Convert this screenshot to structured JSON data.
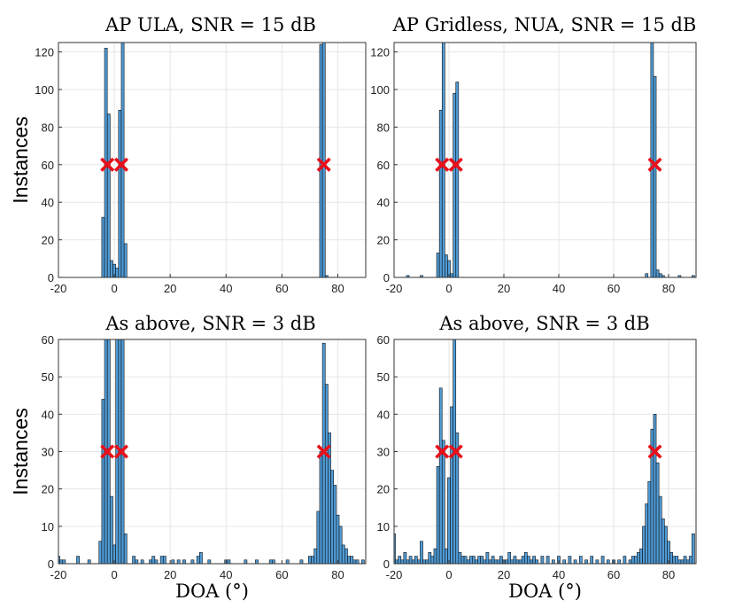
{
  "colors": {
    "bar": "#4f9bd6",
    "bar_edge": "#111111",
    "marker": "#e8101a",
    "grid": "#e6e6e6"
  },
  "chart_data": [
    {
      "type": "bar",
      "title": "AP ULA, SNR = 15 dB",
      "ylabel": "Instances",
      "xlabel": "",
      "xlim": [
        -20,
        90
      ],
      "ylim": [
        0,
        125
      ],
      "xticks": [
        "-20",
        "0",
        "20",
        "40",
        "60",
        "80"
      ],
      "yticks": [
        "0",
        "20",
        "40",
        "60",
        "80",
        "100",
        "120"
      ],
      "bin_width": 1,
      "bins": [
        [
          -4,
          32
        ],
        [
          -3,
          122
        ],
        [
          -2,
          87
        ],
        [
          -1,
          9
        ],
        [
          0,
          7
        ],
        [
          1,
          5
        ],
        [
          2,
          89
        ],
        [
          3,
          125
        ],
        [
          4,
          18
        ],
        [
          74,
          124
        ],
        [
          75,
          125
        ],
        [
          76,
          1
        ]
      ],
      "markers": {
        "x": [
          -2.5,
          2.5,
          75
        ],
        "y": 60
      }
    },
    {
      "type": "bar",
      "title": "AP Gridless, NUA, SNR = 15 dB",
      "ylabel": "",
      "xlabel": "",
      "xlim": [
        -20,
        90
      ],
      "ylim": [
        0,
        125
      ],
      "xticks": [
        "-20",
        "0",
        "20",
        "40",
        "60",
        "80"
      ],
      "yticks": [
        "0",
        "20",
        "40",
        "60",
        "80",
        "100",
        "120"
      ],
      "bin_width": 1,
      "bins": [
        [
          -15,
          1
        ],
        [
          -10,
          1
        ],
        [
          -4,
          13
        ],
        [
          -3,
          89
        ],
        [
          -2,
          125
        ],
        [
          -1,
          12
        ],
        [
          0,
          9
        ],
        [
          1,
          2
        ],
        [
          2,
          98
        ],
        [
          3,
          104
        ],
        [
          72,
          2
        ],
        [
          74,
          125
        ],
        [
          75,
          107
        ],
        [
          76,
          4
        ],
        [
          77,
          2
        ],
        [
          78,
          1
        ],
        [
          84,
          1
        ],
        [
          89,
          1
        ]
      ],
      "markers": {
        "x": [
          -2.5,
          2.5,
          75
        ],
        "y": 60
      }
    },
    {
      "type": "bar",
      "title": "As above, SNR = 3 dB",
      "ylabel": "Instances",
      "xlabel": "DOA (°)",
      "xlim": [
        -20,
        90
      ],
      "ylim": [
        0,
        60
      ],
      "xticks": [
        "-20",
        "0",
        "20",
        "40",
        "60",
        "80"
      ],
      "yticks": [
        "0",
        "10",
        "20",
        "30",
        "40",
        "50",
        "60"
      ],
      "bin_width": 1,
      "bins": [
        [
          -20,
          2
        ],
        [
          -19,
          1
        ],
        [
          -18,
          1
        ],
        [
          -13,
          2
        ],
        [
          -9,
          1
        ],
        [
          -5,
          6
        ],
        [
          -4,
          44
        ],
        [
          -3,
          60
        ],
        [
          -2,
          60
        ],
        [
          -1,
          18
        ],
        [
          0,
          5
        ],
        [
          1,
          60
        ],
        [
          2,
          60
        ],
        [
          3,
          60
        ],
        [
          4,
          8
        ],
        [
          7,
          2
        ],
        [
          8,
          1
        ],
        [
          10,
          1
        ],
        [
          13,
          1
        ],
        [
          14,
          2
        ],
        [
          15,
          1
        ],
        [
          17,
          2
        ],
        [
          18,
          2
        ],
        [
          21,
          1
        ],
        [
          23,
          1
        ],
        [
          25,
          1
        ],
        [
          28,
          1
        ],
        [
          30,
          2
        ],
        [
          31,
          3
        ],
        [
          34,
          1
        ],
        [
          40,
          1
        ],
        [
          41,
          1
        ],
        [
          47,
          1
        ],
        [
          51,
          1
        ],
        [
          56,
          1
        ],
        [
          57,
          1
        ],
        [
          62,
          1
        ],
        [
          67,
          1
        ],
        [
          70,
          2
        ],
        [
          71,
          2
        ],
        [
          72,
          4
        ],
        [
          73,
          14
        ],
        [
          74,
          30
        ],
        [
          75,
          59
        ],
        [
          76,
          48
        ],
        [
          77,
          35
        ],
        [
          78,
          25
        ],
        [
          79,
          21
        ],
        [
          80,
          13
        ],
        [
          81,
          10
        ],
        [
          82,
          5
        ],
        [
          83,
          4
        ],
        [
          84,
          2
        ],
        [
          85,
          2
        ],
        [
          86,
          1
        ],
        [
          87,
          1
        ],
        [
          89,
          1
        ]
      ],
      "markers": {
        "x": [
          -2.5,
          2.5,
          75
        ],
        "y": 30
      }
    },
    {
      "type": "bar",
      "title": "As above, SNR = 3 dB",
      "ylabel": "",
      "xlabel": "DOA (°)",
      "xlim": [
        -20,
        90
      ],
      "ylim": [
        0,
        60
      ],
      "xticks": [
        "-20",
        "0",
        "20",
        "40",
        "60",
        "80"
      ],
      "yticks": [
        "0",
        "10",
        "20",
        "30",
        "40",
        "50",
        "60"
      ],
      "bin_width": 1,
      "bins": [
        [
          -20,
          8
        ],
        [
          -19,
          1
        ],
        [
          -18,
          2
        ],
        [
          -17,
          1
        ],
        [
          -16,
          3
        ],
        [
          -15,
          1
        ],
        [
          -14,
          2
        ],
        [
          -13,
          1
        ],
        [
          -12,
          2
        ],
        [
          -11,
          1
        ],
        [
          -10,
          6
        ],
        [
          -9,
          1
        ],
        [
          -8,
          1
        ],
        [
          -7,
          3
        ],
        [
          -6,
          2
        ],
        [
          -5,
          4
        ],
        [
          -4,
          26
        ],
        [
          -3,
          47
        ],
        [
          -2,
          33
        ],
        [
          -1,
          4
        ],
        [
          0,
          23
        ],
        [
          1,
          42
        ],
        [
          2,
          60
        ],
        [
          3,
          35
        ],
        [
          4,
          3
        ],
        [
          5,
          2
        ],
        [
          6,
          2
        ],
        [
          7,
          1
        ],
        [
          8,
          2
        ],
        [
          9,
          2
        ],
        [
          10,
          1
        ],
        [
          11,
          2
        ],
        [
          12,
          2
        ],
        [
          13,
          1
        ],
        [
          14,
          3
        ],
        [
          15,
          1
        ],
        [
          16,
          2
        ],
        [
          17,
          1
        ],
        [
          18,
          1
        ],
        [
          19,
          2
        ],
        [
          20,
          1
        ],
        [
          21,
          1
        ],
        [
          22,
          3
        ],
        [
          23,
          1
        ],
        [
          24,
          2
        ],
        [
          25,
          1
        ],
        [
          26,
          1
        ],
        [
          27,
          2
        ],
        [
          28,
          3
        ],
        [
          29,
          2
        ],
        [
          30,
          1
        ],
        [
          31,
          2
        ],
        [
          32,
          1
        ],
        [
          34,
          2
        ],
        [
          36,
          2
        ],
        [
          38,
          1
        ],
        [
          40,
          2
        ],
        [
          42,
          1
        ],
        [
          44,
          2
        ],
        [
          46,
          1
        ],
        [
          48,
          2
        ],
        [
          50,
          1
        ],
        [
          52,
          2
        ],
        [
          54,
          1
        ],
        [
          56,
          2
        ],
        [
          58,
          1
        ],
        [
          60,
          1
        ],
        [
          62,
          1
        ],
        [
          64,
          2
        ],
        [
          66,
          1
        ],
        [
          67,
          2
        ],
        [
          68,
          2
        ],
        [
          69,
          3
        ],
        [
          70,
          4
        ],
        [
          71,
          10
        ],
        [
          72,
          16
        ],
        [
          73,
          22
        ],
        [
          74,
          36
        ],
        [
          75,
          40
        ],
        [
          76,
          27
        ],
        [
          77,
          18
        ],
        [
          78,
          12
        ],
        [
          79,
          10
        ],
        [
          80,
          6
        ],
        [
          81,
          3
        ],
        [
          82,
          2
        ],
        [
          83,
          2
        ],
        [
          84,
          1
        ],
        [
          85,
          1
        ],
        [
          86,
          2
        ],
        [
          87,
          1
        ],
        [
          88,
          2
        ],
        [
          89,
          8
        ]
      ],
      "markers": {
        "x": [
          -2.5,
          2.5,
          75
        ],
        "y": 30
      }
    }
  ]
}
